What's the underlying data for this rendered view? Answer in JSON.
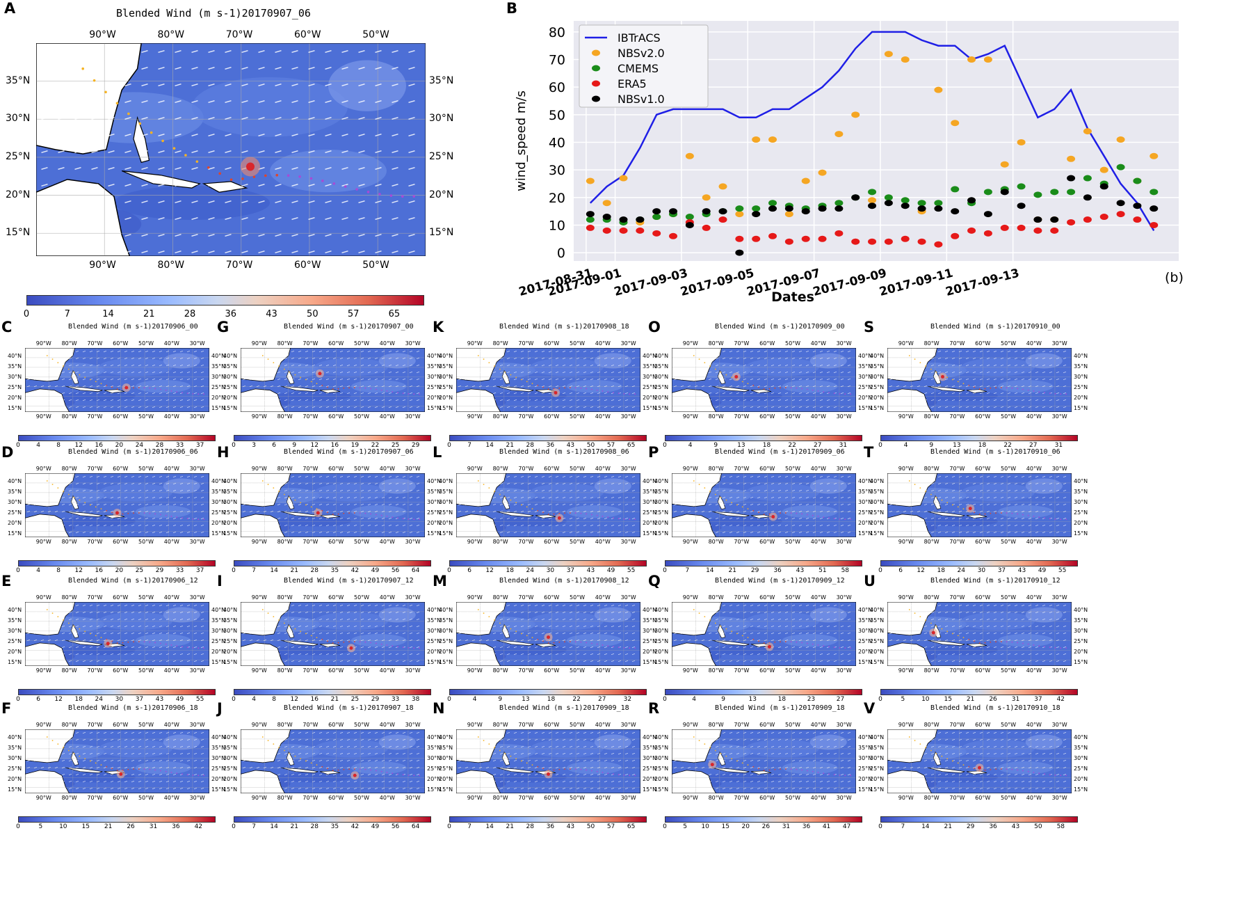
{
  "panel_A": {
    "label": "A",
    "title": "Blended Wind (m s-1)20170907_06",
    "lon_labels": [
      "90°W",
      "80°W",
      "70°W",
      "60°W",
      "50°W"
    ],
    "lat_labels": [
      "35°N",
      "30°N",
      "25°N",
      "20°N",
      "15°N"
    ],
    "colorbar_ticks": [
      "0",
      "7",
      "14",
      "21",
      "28",
      "36",
      "43",
      "50",
      "57",
      "65"
    ]
  },
  "chart_data": {
    "label": "B",
    "type": "scatter",
    "xlabel": "Dates",
    "ylabel": "wind_speed m/s",
    "ylim": [
      -3,
      84
    ],
    "y_ticks": [
      0,
      10,
      20,
      30,
      40,
      50,
      60,
      70,
      80
    ],
    "x_ticks": [
      "2017-08-31",
      "2017-09-01",
      "2017-09-03",
      "2017-09-05",
      "2017-09-07",
      "2017-09-09",
      "2017-09-11",
      "2017-09-13"
    ],
    "annotation": "(b)",
    "legend_position": "top-left",
    "x_unit": "index of 6-hourly time step from 2017-08-31 00Z",
    "series": [
      {
        "name": "IBTrACS",
        "kind": "line",
        "color": "#1f1fe6",
        "x": [
          0,
          2,
          4,
          6,
          8,
          10,
          12,
          14,
          16,
          18,
          20,
          22,
          24,
          26,
          28,
          30,
          32,
          34,
          36,
          38,
          40,
          42,
          44,
          46,
          48,
          50,
          52,
          54,
          56,
          58,
          60,
          62,
          64,
          66,
          68
        ],
        "values": [
          18,
          24,
          28,
          38,
          50,
          52,
          52,
          52,
          52,
          49,
          49,
          52,
          52,
          56,
          60,
          66,
          74,
          80,
          80,
          80,
          77,
          75,
          75,
          70,
          72,
          75,
          62,
          49,
          52,
          59,
          45,
          35,
          25,
          18,
          8
        ]
      },
      {
        "name": "NBSv2.0",
        "kind": "scatter",
        "color": "#f5a623",
        "x": [
          0,
          2,
          4,
          6,
          8,
          10,
          12,
          14,
          16,
          18,
          20,
          22,
          24,
          26,
          28,
          30,
          32,
          34,
          36,
          38,
          40,
          42,
          44,
          46,
          48,
          50,
          52,
          54,
          56,
          58,
          60,
          62,
          64,
          66,
          68
        ],
        "values": [
          26,
          18,
          27,
          11,
          13,
          14,
          35,
          20,
          24,
          14,
          41,
          41,
          14,
          26,
          29,
          43,
          50,
          19,
          72,
          70,
          15,
          59,
          47,
          70,
          70,
          32,
          40,
          12,
          12,
          34,
          44,
          30,
          41,
          26,
          35
        ]
      },
      {
        "name": "CMEMS",
        "kind": "scatter",
        "color": "#1a8c1a",
        "x": [
          0,
          2,
          4,
          6,
          8,
          10,
          12,
          14,
          16,
          18,
          20,
          22,
          24,
          26,
          28,
          30,
          32,
          34,
          36,
          38,
          40,
          42,
          44,
          46,
          48,
          50,
          52,
          54,
          56,
          58,
          60,
          62,
          64,
          66,
          68
        ],
        "values": [
          12,
          12,
          11,
          12,
          13,
          14,
          13,
          14,
          15,
          16,
          16,
          18,
          17,
          16,
          17,
          18,
          20,
          22,
          20,
          19,
          18,
          18,
          23,
          18,
          22,
          23,
          24,
          21,
          22,
          22,
          27,
          25,
          31,
          26,
          22
        ]
      },
      {
        "name": "ERA5",
        "kind": "scatter",
        "color": "#e61919",
        "x": [
          0,
          2,
          4,
          6,
          8,
          10,
          12,
          14,
          16,
          18,
          20,
          22,
          24,
          26,
          28,
          30,
          32,
          34,
          36,
          38,
          40,
          42,
          44,
          46,
          48,
          50,
          52,
          54,
          56,
          58,
          60,
          62,
          64,
          66,
          68
        ],
        "values": [
          9,
          8,
          8,
          8,
          7,
          6,
          11,
          9,
          12,
          5,
          5,
          6,
          4,
          5,
          5,
          7,
          4,
          4,
          4,
          5,
          4,
          3,
          6,
          8,
          7,
          9,
          9,
          8,
          8,
          11,
          12,
          13,
          14,
          12,
          10
        ]
      },
      {
        "name": "NBSv1.0",
        "kind": "scatter",
        "color": "#000000",
        "x": [
          0,
          2,
          4,
          6,
          8,
          10,
          12,
          14,
          16,
          18,
          20,
          22,
          24,
          26,
          28,
          30,
          32,
          34,
          36,
          38,
          40,
          42,
          44,
          46,
          48,
          50,
          52,
          54,
          56,
          58,
          60,
          62,
          64,
          66,
          68
        ],
        "values": [
          14,
          13,
          12,
          12,
          15,
          15,
          10,
          15,
          15,
          0,
          14,
          16,
          16,
          15,
          16,
          16,
          20,
          17,
          18,
          17,
          16,
          16,
          15,
          19,
          14,
          22,
          17,
          12,
          12,
          27,
          20,
          24,
          18,
          17,
          16
        ]
      }
    ]
  },
  "small_panels": [
    {
      "label": "C",
      "title": "Blended Wind (m s-1)20170906_00",
      "ticks": [
        "0",
        "4",
        "8",
        "12",
        "16",
        "20",
        "24",
        "28",
        "33",
        "37"
      ]
    },
    {
      "label": "D",
      "title": "Blended Wind (m s-1)20170906_06",
      "ticks": [
        "0",
        "4",
        "8",
        "12",
        "16",
        "20",
        "25",
        "29",
        "33",
        "37"
      ]
    },
    {
      "label": "E",
      "title": "Blended Wind (m s-1)20170906_12",
      "ticks": [
        "0",
        "6",
        "12",
        "18",
        "24",
        "30",
        "37",
        "43",
        "49",
        "55"
      ]
    },
    {
      "label": "F",
      "title": "Blended Wind (m s-1)20170906_18",
      "ticks": [
        "0",
        "5",
        "10",
        "15",
        "21",
        "26",
        "31",
        "36",
        "42"
      ]
    },
    {
      "label": "G",
      "title": "Blended Wind (m s-1)20170907_00",
      "ticks": [
        "0",
        "3",
        "6",
        "9",
        "12",
        "16",
        "19",
        "22",
        "25",
        "29"
      ]
    },
    {
      "label": "H",
      "title": "Blended Wind (m s-1)20170907_06",
      "ticks": [
        "0",
        "7",
        "14",
        "21",
        "28",
        "35",
        "42",
        "49",
        "56",
        "64"
      ]
    },
    {
      "label": "I",
      "title": "Blended Wind (m s-1)20170907_12",
      "ticks": [
        "0",
        "4",
        "8",
        "12",
        "16",
        "21",
        "25",
        "29",
        "33",
        "38"
      ]
    },
    {
      "label": "J",
      "title": "Blended Wind (m s-1)20170907_18",
      "ticks": [
        "0",
        "7",
        "14",
        "21",
        "28",
        "35",
        "42",
        "49",
        "56",
        "64"
      ]
    },
    {
      "label": "K",
      "title": "Blended Wind (m s-1)20170908_18",
      "ticks": [
        "0",
        "7",
        "14",
        "21",
        "28",
        "36",
        "43",
        "50",
        "57",
        "65"
      ]
    },
    {
      "label": "L",
      "title": "Blended Wind (m s-1)20170908_06",
      "ticks": [
        "0",
        "6",
        "12",
        "18",
        "24",
        "30",
        "37",
        "43",
        "49",
        "55"
      ]
    },
    {
      "label": "M",
      "title": "Blended Wind (m s-1)20170908_12",
      "ticks": [
        "0",
        "4",
        "9",
        "13",
        "18",
        "22",
        "27",
        "32"
      ]
    },
    {
      "label": "N",
      "title": "Blended Wind (m s-1)20170909_18",
      "ticks": [
        "0",
        "7",
        "14",
        "21",
        "28",
        "36",
        "43",
        "50",
        "57",
        "65"
      ]
    },
    {
      "label": "O",
      "title": "Blended Wind (m s-1)20170909_00",
      "ticks": [
        "0",
        "4",
        "9",
        "13",
        "18",
        "22",
        "27",
        "31"
      ]
    },
    {
      "label": "P",
      "title": "Blended Wind (m s-1)20170909_06",
      "ticks": [
        "0",
        "7",
        "14",
        "21",
        "29",
        "36",
        "43",
        "51",
        "58"
      ]
    },
    {
      "label": "Q",
      "title": "Blended Wind (m s-1)20170909_12",
      "ticks": [
        "0",
        "4",
        "9",
        "13",
        "18",
        "23",
        "27"
      ]
    },
    {
      "label": "R",
      "title": "Blended Wind (m s-1)20170909_18",
      "ticks": [
        "0",
        "5",
        "10",
        "15",
        "20",
        "26",
        "31",
        "36",
        "41",
        "47"
      ]
    },
    {
      "label": "S",
      "title": "Blended Wind (m s-1)20170910_00",
      "ticks": [
        "0",
        "4",
        "9",
        "13",
        "18",
        "22",
        "27",
        "31"
      ]
    },
    {
      "label": "T",
      "title": "Blended Wind (m s-1)20170910_06",
      "ticks": [
        "0",
        "6",
        "12",
        "18",
        "24",
        "30",
        "37",
        "43",
        "49",
        "55"
      ]
    },
    {
      "label": "U",
      "title": "Blended Wind (m s-1)20170910_12",
      "ticks": [
        "0",
        "5",
        "10",
        "15",
        "21",
        "26",
        "31",
        "37",
        "42"
      ]
    },
    {
      "label": "V",
      "title": "Blended Wind (m s-1)20170910_18",
      "ticks": [
        "0",
        "7",
        "14",
        "21",
        "29",
        "36",
        "43",
        "50",
        "58"
      ]
    }
  ],
  "small_lon_labels": [
    "90°W",
    "80°W",
    "70°W",
    "60°W",
    "50°W",
    "40°W",
    "30°W"
  ],
  "small_lat_labels": [
    "40°N",
    "35°N",
    "30°N",
    "25°N",
    "20°N",
    "15°N"
  ]
}
